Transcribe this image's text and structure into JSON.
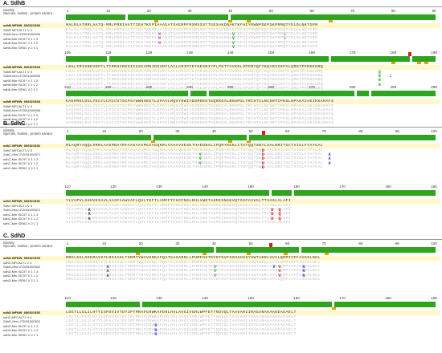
{
  "panels": [
    {
      "id": "sdhb",
      "title": "A. SdhB",
      "header_identity": "Identity",
      "header_species": "Species, isolate , protein variant",
      "ref_name": "sdhB MFNW_006921538",
      "row_names": [
        "SdhB MFCALT1 V 4",
        "SdhB-Mm LFZ001000506",
        "sdhB-Mm ISC97 V 1 1 3",
        "sdhB-Mm ISC97 V 1 1 2",
        "sdhB-Mm ISR61 V 2 1 1"
      ],
      "blocks": [
        {
          "ticks": [
            "1",
            "10",
            "20",
            "30",
            "40",
            "50",
            "60",
            "70",
            "80",
            "90"
          ],
          "ref_seq": "MALRLATRRLAATQ-MRLPRRIAATTIEHTKEPIAAAEATSAERPFRSMSSSTTGESAKDNAKTKFHIYRWNPDEPSKPRMQTYELDLNKTGPM",
          "variants": [
            {
              "row": 1,
              "pos": 0.25,
              "letter": "M",
              "color": "#cc44cc"
            },
            {
              "row": 2,
              "pos": 0.25,
              "letter": "M",
              "color": "#cc44cc"
            },
            {
              "row": 3,
              "pos": 0.25,
              "letter": "M",
              "color": "#cc44cc"
            },
            {
              "row": 1,
              "pos": 0.45,
              "letter": "V",
              "color": "#22aa22"
            },
            {
              "row": 2,
              "pos": 0.45,
              "letter": "V",
              "color": "#22aa22"
            },
            {
              "row": 3,
              "pos": 0.45,
              "letter": "V",
              "color": "#22aa22"
            },
            {
              "row": 4,
              "pos": 0.45,
              "letter": "V",
              "color": "#22aa22"
            },
            {
              "row": 1,
              "pos": 0.59,
              "letter": "L",
              "color": "#888888"
            },
            {
              "row": 2,
              "pos": 0.59,
              "letter": "L",
              "color": "#888888"
            }
          ]
        },
        {
          "ticks": [
            "109",
            "119",
            "129",
            "139",
            "149",
            "159",
            "169",
            "179",
            "189",
            "199"
          ],
          "ref_seq": "LDALIRIKNEVDPTLTFRRSCREGICGSCAMNIDGVNTLACLCRIPTETKESRIYPLPHTYVVKDLVPDMTQFYKQYRSIKPYLQRDTPPDKENRQ",
          "variants": [
            {
              "row": 0,
              "pos": 0.845,
              "letter": "Q",
              "color": "#22aa22"
            },
            {
              "row": 1,
              "pos": 0.845,
              "letter": "N",
              "color": "#22aa22"
            },
            {
              "row": 2,
              "pos": 0.845,
              "letter": "N",
              "color": "#22aa22"
            },
            {
              "row": 3,
              "pos": 0.845,
              "letter": "N",
              "color": "#22aa22"
            },
            {
              "row": 1,
              "pos": 0.875,
              "letter": "L",
              "color": "#888888"
            }
          ]
        },
        {
          "ticks": [
            "210",
            "220",
            "230",
            "240",
            "250",
            "260",
            "270",
            "280",
            "290",
            "299"
          ],
          "ref_seq": "KAERRKLDGLYECYLCACCSTSCPSYWWNSEEYLGPAVLMQSYRWIADSRDEKTEQRKDALNNSMSLYRCHTILNCSRTCPKGLNPAKAIAEIKKAMAFS",
          "variants": []
        }
      ]
    },
    {
      "id": "sdhc",
      "title": "B. SdhC",
      "header_identity": "Identity",
      "header_species": "Species, isolate , protein variant",
      "ref_name": "sdhC MFNW_006921536",
      "row_names": [
        "SdhC MFCALT1 V 4",
        "SdhC-Mm LFZ001000571",
        "sdhC-Mm ISC97 V 1 1 3",
        "sdhC-Mm ISC97 V 1 1 2",
        "sdhC-Mm ISR61 V 2 1 1"
      ],
      "blocks": [
        {
          "ticks": [
            "1",
            "10",
            "20",
            "30",
            "40",
            "50",
            "60",
            "70",
            "80",
            "90",
            "100"
          ],
          "ref_seq": "MLAQRYAQQLSRRLAAGMNAYRFAAGAAVMGIAGQKRLVAAAVSESETHAEDNALIPQRYKEKLITSYQQTSWYLSALNRITGCTVIGLFYAYGAL",
          "variants": [
            {
              "row": 1,
              "pos": 0.36,
              "letter": "V",
              "color": "#22aa22"
            },
            {
              "row": 2,
              "pos": 0.36,
              "letter": "V",
              "color": "#22aa22"
            },
            {
              "row": 3,
              "pos": 0.36,
              "letter": "V",
              "color": "#22aa22"
            },
            {
              "row": 0,
              "pos": 0.53,
              "letter": "D",
              "color": "#cc2222"
            },
            {
              "row": 1,
              "pos": 0.53,
              "letter": "D",
              "color": "#cc2222"
            },
            {
              "row": 2,
              "pos": 0.53,
              "letter": "D",
              "color": "#cc2222"
            },
            {
              "row": 3,
              "pos": 0.53,
              "letter": "D",
              "color": "#cc2222"
            },
            {
              "row": 4,
              "pos": 0.53,
              "letter": "D",
              "color": "#cc2222"
            },
            {
              "row": 1,
              "pos": 0.71,
              "letter": "K",
              "color": "#3344cc"
            },
            {
              "row": 2,
              "pos": 0.71,
              "letter": "K",
              "color": "#3344cc"
            },
            {
              "row": 3,
              "pos": 0.71,
              "letter": "K",
              "color": "#3344cc"
            }
          ]
        },
        {
          "ticks": [
            "110",
            "120",
            "130",
            "140",
            "150",
            "160",
            "170",
            "180",
            "184"
          ],
          "ref_seq": "YLVAPVLGHHVESAVLAASFAAWVAFLQVLTKFTLAMPFTFHCFNGLRHLVWDTASMISNGKVQTGGFAVVGLTTVASLALAFI",
          "variants": [
            {
              "row": 1,
              "pos": 0.06,
              "letter": "A",
              "color": "#333333"
            },
            {
              "row": 2,
              "pos": 0.06,
              "letter": "A",
              "color": "#333333"
            },
            {
              "row": 3,
              "pos": 0.06,
              "letter": "A",
              "color": "#333333"
            },
            {
              "row": 1,
              "pos": 0.555,
              "letter": "D",
              "color": "#cc2222"
            },
            {
              "row": 2,
              "pos": 0.555,
              "letter": "D",
              "color": "#cc2222"
            },
            {
              "row": 3,
              "pos": 0.555,
              "letter": "D",
              "color": "#cc2222"
            },
            {
              "row": 1,
              "pos": 0.575,
              "letter": "Q",
              "color": "#cc2222"
            },
            {
              "row": 2,
              "pos": 0.575,
              "letter": "Q",
              "color": "#cc2222"
            },
            {
              "row": 3,
              "pos": 0.575,
              "letter": "Q",
              "color": "#cc2222"
            }
          ]
        }
      ]
    },
    {
      "id": "sdhd",
      "title": "C. SdhD",
      "header_identity": "Identity",
      "header_species": "Species, isolate , protein variant",
      "ref_name": "sdhD MFNW_006921535",
      "row_names": [
        "sdhD MFCALT1 V 4",
        "SdhD-Mm LFZ001000522",
        "sdhD-Mm ISC97 V 1 1 3",
        "sdhD-Mm ISC97 V 1 1 2",
        "sdhD-Mm ISR61 V 2 1 1"
      ],
      "blocks": [
        {
          "ticks": [
            "1",
            "10",
            "20",
            "30",
            "40",
            "50",
            "60",
            "70",
            "80",
            "90",
            "100"
          ],
          "ref_seq": "MRGLEGLSSKRAYSTLRSIAGLTSRRTYWAVGREAFQATGASARRLLPHMFDSTKVDTKVFSSHSHGSYHWTAERLVVILQMPIVFFAVGSLNGL",
          "variants": [
            {
              "row": 1,
              "pos": 0.11,
              "letter": "A",
              "color": "#333333"
            },
            {
              "row": 2,
              "pos": 0.11,
              "letter": "A",
              "color": "#333333"
            },
            {
              "row": 3,
              "pos": 0.11,
              "letter": "A",
              "color": "#333333"
            },
            {
              "row": 1,
              "pos": 0.4,
              "letter": "V",
              "color": "#22aa22"
            },
            {
              "row": 2,
              "pos": 0.4,
              "letter": "V",
              "color": "#22aa22"
            },
            {
              "row": 3,
              "pos": 0.4,
              "letter": "V",
              "color": "#22aa22"
            },
            {
              "row": 1,
              "pos": 0.56,
              "letter": "K",
              "color": "#3344cc"
            },
            {
              "row": 1,
              "pos": 0.575,
              "letter": "V",
              "color": "#cc2222"
            },
            {
              "row": 2,
              "pos": 0.575,
              "letter": "V",
              "color": "#cc2222"
            },
            {
              "row": 3,
              "pos": 0.575,
              "letter": "V",
              "color": "#cc2222"
            },
            {
              "row": 1,
              "pos": 0.64,
              "letter": "N",
              "color": "#3344cc"
            },
            {
              "row": 2,
              "pos": 0.64,
              "letter": "N",
              "color": "#3344cc"
            },
            {
              "row": 3,
              "pos": 0.64,
              "letter": "N",
              "color": "#3344cc"
            }
          ]
        },
        {
          "ticks": [
            "110",
            "120",
            "130",
            "140",
            "150",
            "160",
            "170",
            "180",
            "188"
          ],
          "ref_seq": "LDGTLLGLILHTYIGPSVIVTDYIPTMRAFGRWKAFDHLHVLAVGIVGRLWPFETTNDVQLTAAVARIIRAGANAKAAKEAEAELT",
          "variants": [
            {
              "row": 2,
              "pos": 0.24,
              "letter": "R",
              "color": "#3344cc"
            },
            {
              "row": 3,
              "pos": 0.24,
              "letter": "R",
              "color": "#3344cc"
            },
            {
              "row": 4,
              "pos": 0.24,
              "letter": "R",
              "color": "#3344cc"
            }
          ]
        }
      ]
    }
  ]
}
